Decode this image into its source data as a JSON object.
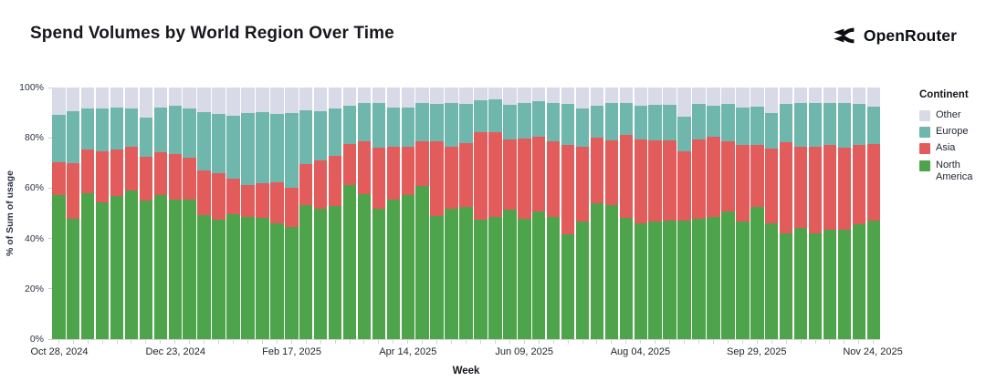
{
  "header": {
    "brand": "OpenRouter"
  },
  "chart_data": {
    "type": "bar",
    "stacked": true,
    "percent": true,
    "title": "Spend Volumes by World Region Over Time",
    "xlabel": "Week",
    "ylabel": "% of Sum of usage",
    "ylim": [
      0,
      100
    ],
    "grid": false,
    "y_ticks": [
      {
        "value": 0,
        "label": "0%"
      },
      {
        "value": 20,
        "label": "20%"
      },
      {
        "value": 40,
        "label": "40%"
      },
      {
        "value": 60,
        "label": "60%"
      },
      {
        "value": 80,
        "label": "80%"
      },
      {
        "value": 100,
        "label": "100%"
      }
    ],
    "weeks_count": 57,
    "x_ticks": [
      {
        "index": 0,
        "label": "Oct 28, 2024"
      },
      {
        "index": 8,
        "label": "Dec 23, 2024"
      },
      {
        "index": 16,
        "label": "Feb 17, 2025"
      },
      {
        "index": 24,
        "label": "Apr 14, 2025"
      },
      {
        "index": 32,
        "label": "Jun 09, 2025"
      },
      {
        "index": 40,
        "label": "Aug 04, 2025"
      },
      {
        "index": 48,
        "label": "Sep 29, 2025"
      },
      {
        "index": 56,
        "label": "Nov 24, 2025"
      }
    ],
    "legend": {
      "title": "Continent",
      "position": "right",
      "entries": [
        {
          "label": "Other",
          "color": "#D8DAE7"
        },
        {
          "label": "Europe",
          "color": "#6FB7AC"
        },
        {
          "label": "Asia",
          "color": "#E25C5C"
        },
        {
          "label": "North America",
          "color": "#4DA44A"
        }
      ]
    },
    "stack_order_bottom_to_top": [
      "North America",
      "Asia",
      "Europe",
      "Other"
    ],
    "series": [
      {
        "name": "North America",
        "color": "#4DA44A",
        "values": [
          57.4,
          47.8,
          58.1,
          54.4,
          56.8,
          59.2,
          54.9,
          57.2,
          55.6,
          55.4,
          49.1,
          47.3,
          49.5,
          48.7,
          48.3,
          45.9,
          44.7,
          53.2,
          51.9,
          52.9,
          61.4,
          57.5,
          51.7,
          55.6,
          57.4,
          60.8,
          49.0,
          51.9,
          52.5,
          47.4,
          48.7,
          51.5,
          47.8,
          50.7,
          48.7,
          41.7,
          46.6,
          54.1,
          53.2,
          48.3,
          45.9,
          46.6,
          47.1,
          47.2,
          47.7,
          48.7,
          50.9,
          46.8,
          52.6,
          46.0,
          41.9,
          44.1,
          41.9,
          43.4,
          43.4,
          45.8,
          47.1
        ]
      },
      {
        "name": "Asia",
        "color": "#E25C5C",
        "values": [
          13.0,
          22.0,
          17.3,
          20.2,
          18.5,
          17.3,
          17.5,
          17.1,
          17.8,
          16.7,
          18.1,
          18.8,
          14.4,
          12.5,
          13.7,
          16.5,
          15.5,
          16.4,
          19.0,
          20.1,
          16.0,
          21.2,
          24.3,
          20.7,
          18.9,
          17.9,
          29.5,
          24.7,
          25.5,
          35.0,
          33.7,
          27.9,
          31.9,
          29.7,
          30.1,
          35.6,
          29.8,
          26.1,
          25.9,
          32.8,
          33.5,
          32.5,
          32.0,
          27.6,
          31.7,
          31.6,
          27.6,
          30.2,
          24.4,
          29.8,
          36.2,
          32.4,
          34.6,
          33.8,
          32.6,
          31.4,
          30.6
        ]
      },
      {
        "name": "Europe",
        "color": "#6FB7AC",
        "values": [
          18.8,
          20.8,
          16.4,
          17.2,
          16.6,
          15.3,
          15.7,
          17.9,
          19.4,
          19.5,
          22.9,
          23.3,
          25.0,
          28.5,
          28.1,
          27.0,
          29.5,
          21.4,
          19.8,
          18.8,
          15.5,
          15.0,
          17.7,
          15.9,
          15.9,
          15.0,
          14.8,
          17.1,
          15.3,
          12.7,
          13.0,
          13.7,
          14.0,
          14.1,
          15.1,
          16.1,
          15.4,
          12.6,
          14.6,
          12.6,
          13.4,
          14.0,
          14.0,
          13.6,
          13.9,
          12.5,
          14.8,
          15.1,
          15.5,
          14.2,
          15.4,
          17.2,
          17.2,
          16.5,
          17.7,
          16.2,
          14.6
        ]
      },
      {
        "name": "Other",
        "color": "#D8DAE7",
        "values": [
          10.8,
          9.4,
          8.2,
          8.2,
          8.1,
          8.2,
          11.9,
          7.8,
          7.2,
          8.4,
          9.9,
          10.6,
          11.1,
          10.3,
          9.9,
          10.6,
          10.3,
          9.0,
          9.3,
          8.2,
          7.1,
          6.3,
          6.3,
          7.8,
          7.8,
          6.3,
          6.7,
          6.3,
          6.7,
          4.9,
          4.6,
          6.9,
          6.3,
          5.5,
          6.1,
          6.6,
          8.2,
          7.2,
          6.3,
          6.3,
          7.2,
          6.9,
          6.9,
          11.6,
          6.7,
          7.2,
          6.7,
          7.9,
          7.5,
          10.0,
          6.5,
          6.3,
          6.3,
          6.3,
          6.3,
          6.6,
          7.7
        ]
      }
    ]
  }
}
